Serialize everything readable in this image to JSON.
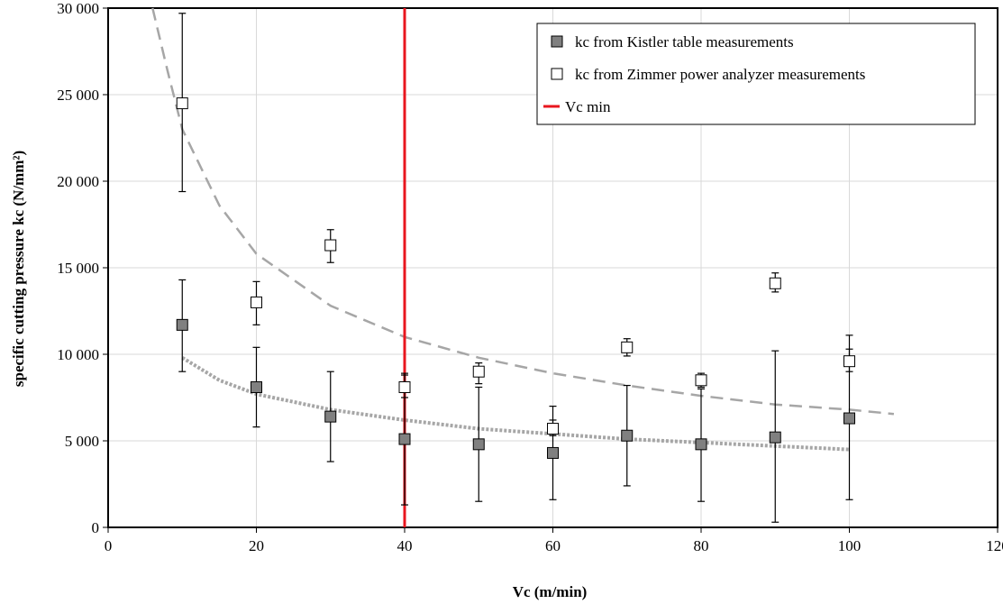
{
  "chart_data": {
    "type": "scatter",
    "title": "",
    "xlabel": "Vc (m/min)",
    "ylabel": "specific cutting pressure kc (N/mm²)",
    "xlim": [
      0,
      120
    ],
    "ylim": [
      0,
      30000
    ],
    "x_ticks": [
      0,
      20,
      40,
      60,
      80,
      100,
      120
    ],
    "y_ticks": [
      0,
      5000,
      10000,
      15000,
      20000,
      25000,
      30000
    ],
    "x_tick_labels": [
      "0",
      "20",
      "40",
      "60",
      "80",
      "100",
      "120"
    ],
    "y_tick_labels": [
      "0",
      "5 000",
      "10 000",
      "15 000",
      "20 000",
      "25 000",
      "30 000"
    ],
    "grid": "horizontal and vertical",
    "legend_position": "top-right",
    "series": [
      {
        "name": "kc from Kistler table measurements",
        "marker": "filled-square",
        "color": "#808080",
        "points": [
          {
            "x": 10,
            "y": 11700,
            "err_low": 9000,
            "err_high": 14300
          },
          {
            "x": 20,
            "y": 8100,
            "err_low": 5800,
            "err_high": 10400
          },
          {
            "x": 30,
            "y": 6400,
            "err_low": 3800,
            "err_high": 9000
          },
          {
            "x": 40,
            "y": 5100,
            "err_low": 1300,
            "err_high": 8900
          },
          {
            "x": 50,
            "y": 4800,
            "err_low": 1500,
            "err_high": 8100
          },
          {
            "x": 60,
            "y": 4300,
            "err_low": 1600,
            "err_high": 7000
          },
          {
            "x": 70,
            "y": 5300,
            "err_low": 2400,
            "err_high": 8200
          },
          {
            "x": 80,
            "y": 4800,
            "err_low": 1500,
            "err_high": 8000
          },
          {
            "x": 90,
            "y": 5200,
            "err_low": 300,
            "err_high": 10200
          },
          {
            "x": 100,
            "y": 6300,
            "err_low": 1600,
            "err_high": 11100
          }
        ]
      },
      {
        "name": "kc from Zimmer power analyzer measurements",
        "marker": "open-square",
        "color": "#000000",
        "points": [
          {
            "x": 10,
            "y": 24500,
            "err_low": 19400,
            "err_high": 29700
          },
          {
            "x": 20,
            "y": 13000,
            "err_low": 11700,
            "err_high": 14200
          },
          {
            "x": 30,
            "y": 16300,
            "err_low": 15300,
            "err_high": 17200
          },
          {
            "x": 40,
            "y": 8100,
            "err_low": 7500,
            "err_high": 8800
          },
          {
            "x": 50,
            "y": 9000,
            "err_low": 8300,
            "err_high": 9500
          },
          {
            "x": 60,
            "y": 5700,
            "err_low": 5300,
            "err_high": 6200
          },
          {
            "x": 70,
            "y": 10400,
            "err_low": 9900,
            "err_high": 10900
          },
          {
            "x": 80,
            "y": 8500,
            "err_low": 8100,
            "err_high": 8900
          },
          {
            "x": 90,
            "y": 14100,
            "err_low": 13600,
            "err_high": 14700
          },
          {
            "x": 100,
            "y": 9600,
            "err_low": 9000,
            "err_high": 10300
          }
        ]
      },
      {
        "name": "Vc min",
        "type": "vertical-line",
        "color": "#e8161e",
        "x": 40
      }
    ],
    "trendlines": [
      {
        "for_series": "kc from Zimmer power analyzer measurements",
        "style": "dashed",
        "color": "#a6a6a6",
        "x_range": [
          6,
          106
        ],
        "points": [
          [
            6,
            30000
          ],
          [
            8,
            26400
          ],
          [
            10,
            23000
          ],
          [
            15,
            18600
          ],
          [
            20,
            15800
          ],
          [
            30,
            12800
          ],
          [
            40,
            11000
          ],
          [
            50,
            9800
          ],
          [
            60,
            8900
          ],
          [
            70,
            8200
          ],
          [
            80,
            7600
          ],
          [
            90,
            7100
          ],
          [
            100,
            6800
          ],
          [
            106,
            6550
          ]
        ]
      },
      {
        "for_series": "kc from Kistler table measurements",
        "style": "dotted",
        "color": "#a6a6a6",
        "x_range": [
          10,
          100
        ],
        "points": [
          [
            10,
            9800
          ],
          [
            15,
            8500
          ],
          [
            20,
            7700
          ],
          [
            30,
            6800
          ],
          [
            40,
            6200
          ],
          [
            50,
            5700
          ],
          [
            60,
            5400
          ],
          [
            70,
            5100
          ],
          [
            80,
            4900
          ],
          [
            90,
            4700
          ],
          [
            100,
            4500
          ]
        ]
      }
    ]
  }
}
